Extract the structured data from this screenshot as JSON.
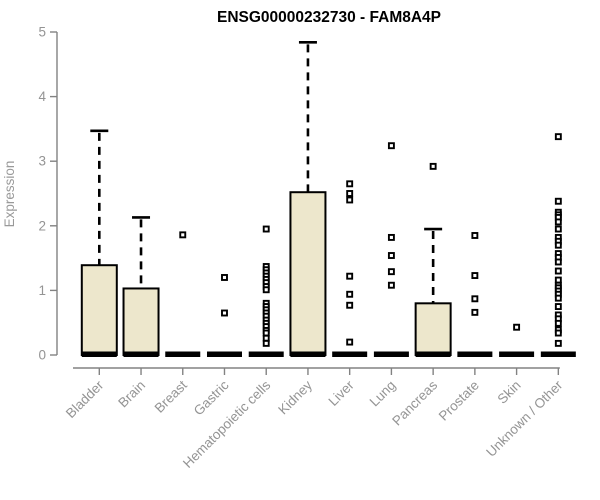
{
  "colors": {
    "box_fill": "#EDE7CC",
    "box_border": "#000000",
    "median": "#000000",
    "axis": "#828282",
    "text": "#949494",
    "title": "#000000",
    "background": "#ffffff"
  },
  "chart_data": {
    "type": "boxplot",
    "title": "ENSG00000232730 - FAM8A4P",
    "xlabel": "",
    "ylabel": "Expression",
    "ylim": [
      0,
      5
    ],
    "yticks": [
      0,
      1,
      2,
      3,
      4,
      5
    ],
    "grid": "off",
    "categories": [
      "Bladder",
      "Brain",
      "Breast",
      "Gastric",
      "Hematopoietic cells",
      "Kidney",
      "Liver",
      "Lung",
      "Pancreas",
      "Prostate",
      "Skin",
      "Unknown / Other"
    ],
    "series": [
      {
        "name": "Bladder",
        "whisker_low": 0,
        "q1": 0,
        "median": 0,
        "q3": 1.39,
        "whisker_high": 3.47,
        "outliers": []
      },
      {
        "name": "Brain",
        "whisker_low": 0,
        "q1": 0,
        "median": 0,
        "q3": 1.03,
        "whisker_high": 2.13,
        "outliers": []
      },
      {
        "name": "Breast",
        "whisker_low": 0,
        "q1": 0,
        "median": 0,
        "q3": 0,
        "whisker_high": 0,
        "outliers": [
          1.86
        ]
      },
      {
        "name": "Gastric",
        "whisker_low": 0,
        "q1": 0,
        "median": 0,
        "q3": 0,
        "whisker_high": 0,
        "outliers": [
          1.2,
          0.65
        ]
      },
      {
        "name": "Hematopoietic cells",
        "whisker_low": 0,
        "q1": 0,
        "median": 0,
        "q3": 0,
        "whisker_high": 0,
        "outliers": [
          1.95,
          1.37,
          1.32,
          1.27,
          1.22,
          1.17,
          1.12,
          1.06,
          1.01,
          0.8,
          0.75,
          0.7,
          0.65,
          0.6,
          0.54,
          0.49,
          0.44,
          0.38,
          0.34,
          0.26,
          0.18
        ]
      },
      {
        "name": "Kidney",
        "whisker_low": 0,
        "q1": 0,
        "median": 0,
        "q3": 2.52,
        "whisker_high": 4.84,
        "outliers": []
      },
      {
        "name": "Liver",
        "whisker_low": 0,
        "q1": 0,
        "median": 0,
        "q3": 0,
        "whisker_high": 0,
        "outliers": [
          2.65,
          2.5,
          2.4,
          1.22,
          0.94,
          0.77,
          0.2
        ]
      },
      {
        "name": "Lung",
        "whisker_low": 0,
        "q1": 0,
        "median": 0,
        "q3": 0,
        "whisker_high": 0,
        "outliers": [
          3.24,
          1.82,
          1.54,
          1.29,
          1.08
        ]
      },
      {
        "name": "Pancreas",
        "whisker_low": 0,
        "q1": 0,
        "median": 0,
        "q3": 0.8,
        "whisker_high": 1.95,
        "outliers": [
          2.92
        ]
      },
      {
        "name": "Prostate",
        "whisker_low": 0,
        "q1": 0,
        "median": 0,
        "q3": 0,
        "whisker_high": 0,
        "outliers": [
          1.85,
          1.23,
          0.87,
          0.66
        ]
      },
      {
        "name": "Skin",
        "whisker_low": 0,
        "q1": 0,
        "median": 0,
        "q3": 0,
        "whisker_high": 0,
        "outliers": [
          0.43
        ]
      },
      {
        "name": "Unknown / Other",
        "whisker_low": 0,
        "q1": 0,
        "median": 0,
        "q3": 0,
        "whisker_high": 0,
        "outliers": [
          3.38,
          2.38,
          2.21,
          2.17,
          2.13,
          2.06,
          1.95,
          1.82,
          1.76,
          1.7,
          1.57,
          1.51,
          1.44,
          1.3,
          1.16,
          1.08,
          1.04,
          0.99,
          0.94,
          0.88,
          0.75,
          0.62,
          0.56,
          0.49,
          0.39,
          0.34,
          0.18
        ]
      }
    ]
  }
}
